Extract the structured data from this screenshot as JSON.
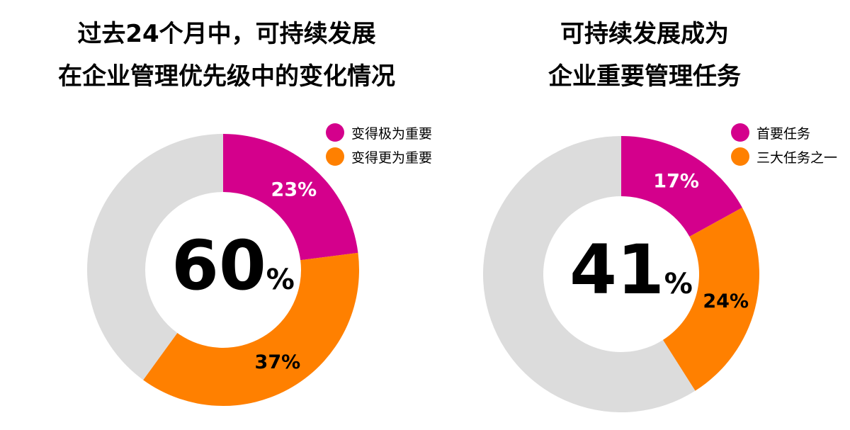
{
  "colors": {
    "magenta": "#d4008c",
    "orange": "#ff8000",
    "gray": "#dcdcdc",
    "label_text": "#ffffff",
    "dark_label": "#000000"
  },
  "chart_data": [
    {
      "type": "pie",
      "variant": "donut",
      "title_lines": [
        "过去24个月中，可持续发展",
        "在企业管理优先级中的变化情况"
      ],
      "center_value": "60",
      "center_unit": "%",
      "legend": [
        "变得极为重要",
        "变得更为重要"
      ],
      "legend_position": "top-right",
      "slices": [
        {
          "label": "变得极为重要",
          "value": 23,
          "display": "23%",
          "color": "#d4008c",
          "label_color": "#ffffff"
        },
        {
          "label": "变得更为重要",
          "value": 37,
          "display": "37%",
          "color": "#ff8000",
          "label_color": "#000000"
        },
        {
          "label": "",
          "value": 40,
          "display": "",
          "color": "#dcdcdc",
          "label_color": "#000000"
        }
      ]
    },
    {
      "type": "pie",
      "variant": "donut",
      "title_lines": [
        "可持续发展成为",
        "企业重要管理任务"
      ],
      "center_value": "41",
      "center_unit": "%",
      "legend": [
        "首要任务",
        "三大任务之一"
      ],
      "legend_position": "top-right",
      "slices": [
        {
          "label": "首要任务",
          "value": 17,
          "display": "17%",
          "color": "#d4008c",
          "label_color": "#ffffff"
        },
        {
          "label": "三大任务之一",
          "value": 24,
          "display": "24%",
          "color": "#ff8000",
          "label_color": "#000000"
        },
        {
          "label": "",
          "value": 59,
          "display": "",
          "color": "#dcdcdc",
          "label_color": "#000000"
        }
      ]
    }
  ]
}
